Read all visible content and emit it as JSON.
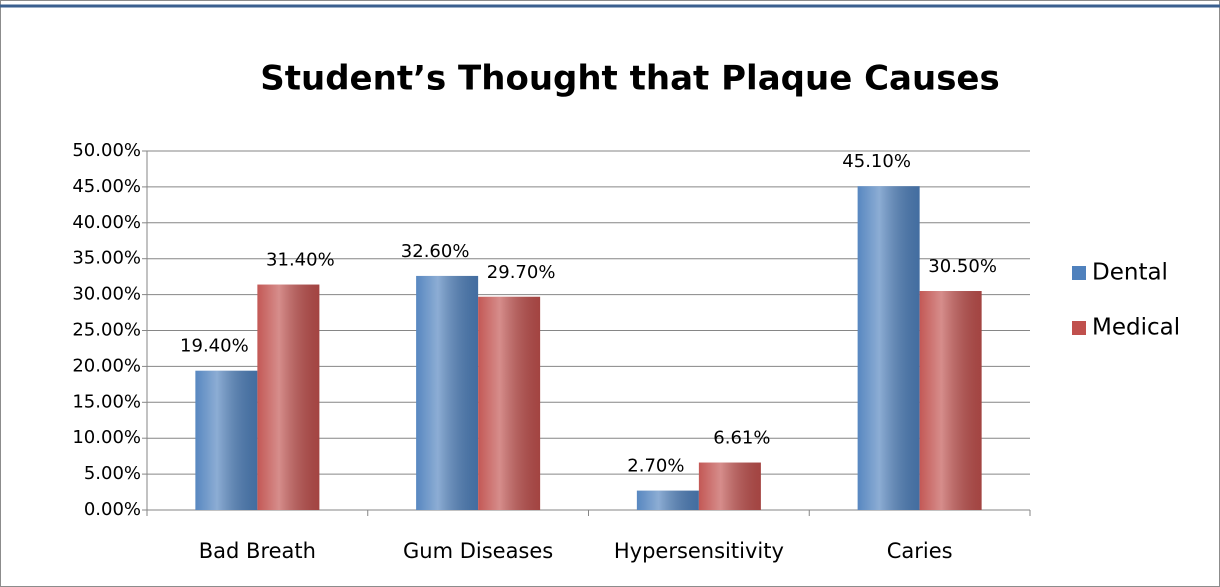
{
  "chart_data": {
    "type": "bar",
    "title": "Student’s Thought that Plaque Causes",
    "categories": [
      "Bad Breath",
      "Gum Diseases",
      "Hypersensitivity",
      "Caries"
    ],
    "series": [
      {
        "name": "Dental",
        "color": "#4f81bd",
        "values": [
          19.4,
          32.6,
          2.7,
          45.1
        ],
        "value_labels": [
          "19.40%",
          "32.60%",
          "2.70%",
          "45.10%"
        ]
      },
      {
        "name": "Medical",
        "color": "#c0504d",
        "values": [
          31.4,
          29.7,
          6.61,
          30.5
        ],
        "value_labels": [
          "31.40%",
          "29.70%",
          "6.61%",
          "30.50%"
        ]
      }
    ],
    "ylim": [
      0,
      50
    ],
    "yticks": [
      {
        "value": 0,
        "label": "0.00%"
      },
      {
        "value": 5,
        "label": "5.00%"
      },
      {
        "value": 10,
        "label": "10.00%"
      },
      {
        "value": 15,
        "label": "15.00%"
      },
      {
        "value": 20,
        "label": "20.00%"
      },
      {
        "value": 25,
        "label": "25.00%"
      },
      {
        "value": 30,
        "label": "30.00%"
      },
      {
        "value": 35,
        "label": "35.00%"
      },
      {
        "value": 40,
        "label": "40.00%"
      },
      {
        "value": 45,
        "label": "45.00%"
      },
      {
        "value": 50,
        "label": "50.00%"
      }
    ],
    "grid": true,
    "legend": "right"
  }
}
